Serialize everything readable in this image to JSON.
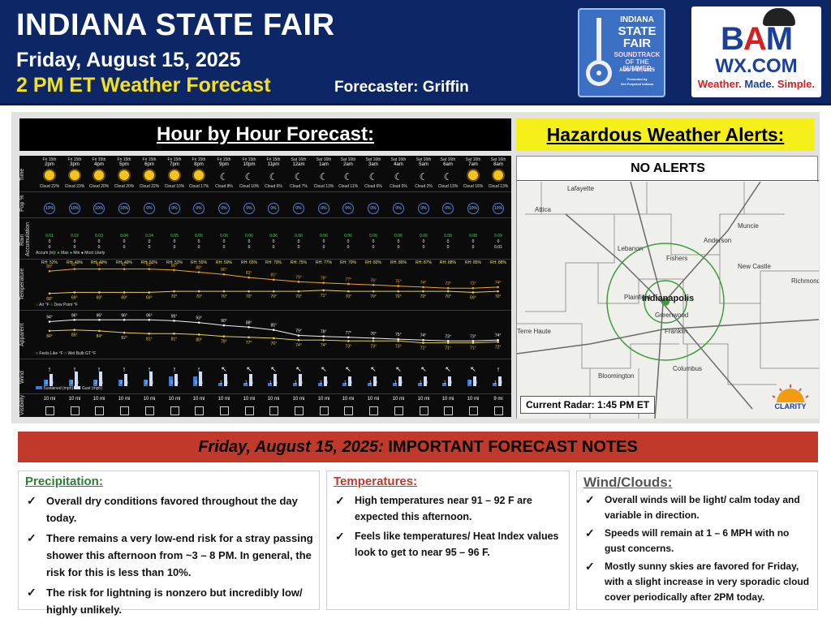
{
  "header": {
    "title": "INDIANA STATE FAIR",
    "date": "Friday, August 15, 2025",
    "forecast_time": "2 PM ET Weather Forecast",
    "forecaster": "Forecaster: Griffin"
  },
  "fair_logo": {
    "line1": "INDIANA",
    "line2": "STATE",
    "line3": "FAIR",
    "line4": "SOUNDTRACK",
    "line5": "OF THE SUMMER",
    "line6": "AUG 1-17, 2025",
    "line7": "Presented by",
    "line8": "Get Prepared Indiana"
  },
  "bam_logo": {
    "b": "B",
    "a": "A",
    "m": "M",
    "wx": "WX.COM",
    "tag1": "Weather.",
    "tag2": "Made.",
    "tag3": "Simple."
  },
  "hourly": {
    "title": "Hour by Hour Forecast:",
    "row_labels": {
      "time": "Time",
      "pop": "Pop %",
      "rain": "Rain",
      "rain_sub": "Accumulation",
      "temp": "Temperature",
      "apparent": "Apparent",
      "wind": "Wind",
      "vis": "Visibility"
    },
    "legend": {
      "accum": "Accum (in):",
      "max": "Max",
      "min": "Min",
      "most_likely": "Most Likely",
      "air": "Air °F",
      "dew": "Dew Point °F",
      "feels": "Feels Like °F",
      "wbgt": "Wet Bulb GT °F",
      "sustained": "Sustained (mph)",
      "gust": "Gust (mph)"
    },
    "hours": [
      {
        "day": "Fri 15th",
        "time": "2pm",
        "icon": "sun",
        "cloud": "Cloud 22%",
        "pop": "10%",
        "rain_top": "0.01",
        "rain_mid": "0",
        "rain_bot": "0",
        "rh": "RH: 52%",
        "temp": "89°",
        "dew": "68°",
        "feels": "94°",
        "wbgt": "84°",
        "wind_dir": "↑",
        "sus": "2",
        "gust": "5",
        "vis": "10 mi"
      },
      {
        "day": "Fri 15th",
        "time": "3pm",
        "icon": "sun",
        "cloud": "Cloud 23%",
        "pop": "10%",
        "rain_top": "0.02",
        "rain_mid": "0",
        "rain_bot": "0",
        "rh": "RH: 49%",
        "temp": "91°",
        "dew": "69°",
        "feels": "96°",
        "wbgt": "85°",
        "wind_dir": "↑",
        "sus": "2",
        "gust": "6",
        "vis": "10 mi"
      },
      {
        "day": "Fri 15th",
        "time": "4pm",
        "icon": "sun",
        "cloud": "Cloud 20%",
        "pop": "10%",
        "rain_top": "0.03",
        "rain_mid": "0",
        "rain_bot": "0",
        "rh": "RH: 49%",
        "temp": "91°",
        "dew": "69°",
        "feels": "96°",
        "wbgt": "84°",
        "wind_dir": "↑",
        "sus": "2",
        "gust": "6",
        "vis": "10 mi"
      },
      {
        "day": "Fri 15th",
        "time": "5pm",
        "icon": "sun",
        "cloud": "Cloud 20%",
        "pop": "10%",
        "rain_top": "0.04",
        "rain_mid": "0",
        "rain_bot": "0",
        "rh": "RH: 49%",
        "temp": "91°",
        "dew": "69°",
        "feels": "96°",
        "wbgt": "82°",
        "wind_dir": "↑",
        "sus": "2",
        "gust": "5",
        "vis": "10 mi"
      },
      {
        "day": "Fri 15th",
        "time": "6pm",
        "icon": "sun",
        "cloud": "Cloud 22%",
        "pop": "0%",
        "rain_top": "0.04",
        "rain_mid": "0",
        "rain_bot": "0",
        "rh": "RH: 50%",
        "temp": "91°",
        "dew": "69°",
        "feels": "96°",
        "wbgt": "81°",
        "wind_dir": "↑",
        "sus": "2",
        "gust": "6",
        "vis": "10 mi"
      },
      {
        "day": "Fri 15th",
        "time": "7pm",
        "icon": "sun",
        "cloud": "Cloud 10%",
        "pop": "0%",
        "rain_top": "0.05",
        "rain_mid": "0",
        "rain_bot": "0",
        "rh": "RH: 53%",
        "temp": "90°",
        "dew": "70°",
        "feels": "95°",
        "wbgt": "81°",
        "wind_dir": "↑",
        "sus": "3",
        "gust": "5",
        "vis": "10 mi"
      },
      {
        "day": "Fri 15th",
        "time": "8pm",
        "icon": "sun",
        "cloud": "Cloud 17%",
        "pop": "0%",
        "rain_top": "0.05",
        "rain_mid": "0",
        "rain_bot": "0",
        "rh": "RH: 55%",
        "temp": "88°",
        "dew": "70°",
        "feels": "93°",
        "wbgt": "80°",
        "wind_dir": "↑",
        "sus": "3",
        "gust": "6",
        "vis": "10 mi"
      },
      {
        "day": "Fri 15th",
        "time": "9pm",
        "icon": "moon",
        "cloud": "Cloud 8%",
        "pop": "0%",
        "rain_top": "0.06",
        "rain_mid": "0",
        "rain_bot": "0",
        "rh": "RH: 59%",
        "temp": "86°",
        "dew": "70°",
        "feels": "90°",
        "wbgt": "78°",
        "wind_dir": "↖",
        "sus": "1",
        "gust": "5",
        "vis": "10 mi"
      },
      {
        "day": "Fri 15th",
        "time": "10pm",
        "icon": "moon",
        "cloud": "Cloud 10%",
        "pop": "0%",
        "rain_top": "0.06",
        "rain_mid": "0",
        "rain_bot": "0",
        "rh": "RH: 65%",
        "temp": "83°",
        "dew": "70°",
        "feels": "88°",
        "wbgt": "77°",
        "wind_dir": "↖",
        "sus": "1",
        "gust": "5",
        "vis": "10 mi"
      },
      {
        "day": "Fri 15th",
        "time": "11pm",
        "icon": "moon",
        "cloud": "Cloud 6%",
        "pop": "0%",
        "rain_top": "0.06",
        "rain_mid": "0",
        "rain_bot": "0",
        "rh": "RH: 70%",
        "temp": "81°",
        "dew": "70°",
        "feels": "85°",
        "wbgt": "76°",
        "wind_dir": "↖",
        "sus": "1",
        "gust": "5",
        "vis": "10 mi"
      },
      {
        "day": "Sat 16th",
        "time": "12am",
        "icon": "moon",
        "cloud": "Cloud 7%",
        "pop": "0%",
        "rain_top": "0.06",
        "rain_mid": "0",
        "rain_bot": "0",
        "rh": "RH: 75%",
        "temp": "79°",
        "dew": "70°",
        "feels": "79°",
        "wbgt": "74°",
        "wind_dir": "↖",
        "sus": "1",
        "gust": "5",
        "vis": "10 mi"
      },
      {
        "day": "Sat 16th",
        "time": "1am",
        "icon": "moon",
        "cloud": "Cloud 13%",
        "pop": "0%",
        "rain_top": "0.06",
        "rain_mid": "0",
        "rain_bot": "0",
        "rh": "RH: 77%",
        "temp": "78°",
        "dew": "71°",
        "feels": "78°",
        "wbgt": "74°",
        "wind_dir": "↖",
        "sus": "1",
        "gust": "4",
        "vis": "10 mi"
      },
      {
        "day": "Sat 16th",
        "time": "2am",
        "icon": "moon",
        "cloud": "Cloud 11%",
        "pop": "0%",
        "rain_top": "0.06",
        "rain_mid": "0",
        "rain_bot": "0",
        "rh": "RH: 79%",
        "temp": "77°",
        "dew": "70°",
        "feels": "77°",
        "wbgt": "73°",
        "wind_dir": "↖",
        "sus": "1",
        "gust": "4",
        "vis": "10 mi"
      },
      {
        "day": "Sat 16th",
        "time": "3am",
        "icon": "moon",
        "cloud": "Cloud 6%",
        "pop": "0%",
        "rain_top": "0.06",
        "rain_mid": "0",
        "rain_bot": "0",
        "rh": "RH: 82%",
        "temp": "76°",
        "dew": "70°",
        "feels": "76°",
        "wbgt": "73°",
        "wind_dir": "↖",
        "sus": "1",
        "gust": "4",
        "vis": "10 mi"
      },
      {
        "day": "Sat 16th",
        "time": "4am",
        "icon": "moon",
        "cloud": "Cloud 5%",
        "pop": "0%",
        "rain_top": "0.06",
        "rain_mid": "0",
        "rain_bot": "0",
        "rh": "RH: 85%",
        "temp": "75°",
        "dew": "70°",
        "feels": "75°",
        "wbgt": "73°",
        "wind_dir": "↖",
        "sus": "1",
        "gust": "4",
        "vis": "10 mi"
      },
      {
        "day": "Sat 16th",
        "time": "5am",
        "icon": "moon",
        "cloud": "Cloud 2%",
        "pop": "0%",
        "rain_top": "0.06",
        "rain_mid": "0",
        "rain_bot": "0",
        "rh": "RH: 87%",
        "temp": "74°",
        "dew": "70°",
        "feels": "74°",
        "wbgt": "71°",
        "wind_dir": "↖",
        "sus": "1",
        "gust": "4",
        "vis": "10 mi"
      },
      {
        "day": "Sat 16th",
        "time": "6am",
        "icon": "moon",
        "cloud": "Cloud 13%",
        "pop": "0%",
        "rain_top": "0.06",
        "rain_mid": "0",
        "rain_bot": "0",
        "rh": "RH: 88%",
        "temp": "73°",
        "dew": "70°",
        "feels": "73°",
        "wbgt": "71°",
        "wind_dir": "↖",
        "sus": "1",
        "gust": "4",
        "vis": "10 mi"
      },
      {
        "day": "Sat 16th",
        "time": "7am",
        "icon": "sun",
        "cloud": "Cloud 16%",
        "pop": "10%",
        "rain_top": "0.08",
        "rain_mid": "0",
        "rain_bot": "0",
        "rh": "RH: 85%",
        "temp": "73°",
        "dew": "69°",
        "feels": "73°",
        "wbgt": "71°",
        "wind_dir": "↖",
        "sus": "2",
        "gust": "4",
        "vis": "10 mi"
      },
      {
        "day": "Sat 16th",
        "time": "8am",
        "icon": "sun",
        "cloud": "Cloud 13%",
        "pop": "10%",
        "rain_top": "0.09",
        "rain_mid": "0",
        "rain_bot": "0.01",
        "rh": "RH: 88%",
        "temp": "74°",
        "dew": "70°",
        "feels": "74°",
        "wbgt": "72°",
        "wind_dir": "↑",
        "sus": "1",
        "gust": "4",
        "vis": "9 mi"
      }
    ],
    "temp_values": [
      89,
      91,
      91,
      91,
      91,
      90,
      88,
      86,
      83,
      81,
      79,
      78,
      77,
      76,
      75,
      74,
      73,
      73,
      74
    ],
    "dew_values": [
      68,
      69,
      69,
      69,
      69,
      70,
      70,
      70,
      70,
      70,
      70,
      71,
      70,
      70,
      70,
      70,
      70,
      69,
      70
    ],
    "feels_values": [
      94,
      96,
      96,
      96,
      96,
      95,
      93,
      90,
      88,
      85,
      79,
      78,
      77,
      76,
      75,
      74,
      73,
      73,
      74
    ],
    "wbgt_values": [
      84,
      85,
      84,
      82,
      81,
      81,
      80,
      78,
      77,
      76,
      74,
      74,
      73,
      73,
      73,
      71,
      71,
      71,
      72
    ]
  },
  "alerts": {
    "title": "Hazardous Weather Alerts:",
    "status": "NO ALERTS",
    "radar_label": "Current Radar: 1:45 PM ET",
    "cities": [
      "Lafayette",
      "Attica",
      "Muncie",
      "Anderson",
      "Lebanon",
      "Fishers",
      "New Castle",
      "Indianapolis",
      "Richmond",
      "Plainfield",
      "Greenwood",
      "Terre Haute",
      "Franklin",
      "Columbus",
      "Bloomington"
    ],
    "clarity": "CLARITY"
  },
  "notes": {
    "banner_date": "Friday, August 15, 2025:",
    "banner_text": " IMPORTANT FORECAST NOTES",
    "precip": {
      "title": "Precipitation:",
      "items": [
        "Overall dry conditions favored throughout the day today.",
        "There remains a very low-end risk for a stray passing shower this afternoon from ~3 – 8 PM.  In general, the risk for this is less than 10%.",
        "The risk for lightning is nonzero but incredibly low/ highly unlikely."
      ]
    },
    "temps": {
      "title": "Temperatures:",
      "items": [
        "High temperatures near 91 – 92 F are expected this afternoon.",
        "Feels like temperatures/ Heat Index values look to get to near 95 – 96 F."
      ]
    },
    "wind": {
      "title": "Wind/Clouds:",
      "items": [
        "Overall winds will be light/ calm today and variable in direction.",
        "Speeds will remain at 1 – 6  MPH with no gust concerns.",
        "Mostly sunny skies are favored for Friday, with a slight increase in very sporadic cloud cover periodically after 2PM today."
      ]
    }
  }
}
